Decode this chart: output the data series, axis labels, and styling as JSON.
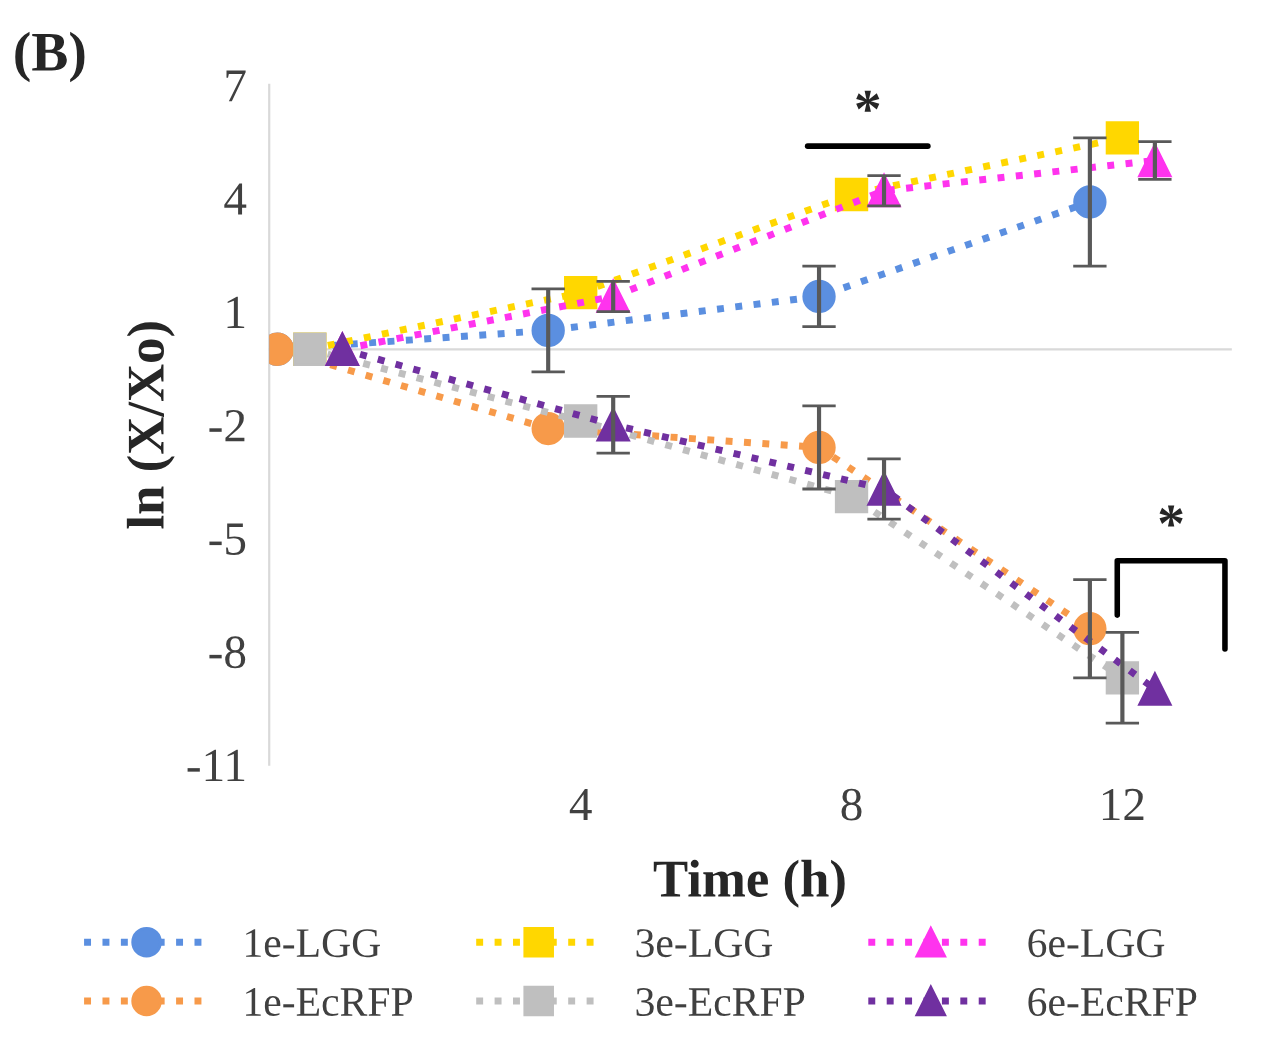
{
  "chart_data": {
    "type": "line",
    "title": "(B)",
    "xlabel": "Time (h)",
    "ylabel": "ln (X/Xo)",
    "categories": [
      null,
      "4",
      "8",
      "12"
    ],
    "ylim": [
      -11,
      7
    ],
    "yticks": [
      7,
      4,
      1,
      -2,
      -5,
      -8,
      -11
    ],
    "grid": false,
    "legend": "bottom",
    "line_style": "dotted",
    "annotations": [
      "*",
      "*"
    ],
    "series": [
      {
        "name": "1e-LGG",
        "color": "#5b8fe0",
        "marker": "circle",
        "values": [
          0,
          0.5,
          1.4,
          3.9
        ],
        "errors": [
          null,
          1.1,
          0.8,
          1.7
        ]
      },
      {
        "name": "1e-EcRFP",
        "color": "#f79a4a",
        "marker": "circle",
        "values": [
          0,
          -2.1,
          -2.6,
          -7.4
        ],
        "errors": [
          null,
          null,
          1.1,
          1.3
        ]
      },
      {
        "name": "3e-LGG",
        "color": "#ffd700",
        "marker": "square",
        "values": [
          0,
          1.5,
          4.1,
          5.6
        ],
        "errors": [
          null,
          null,
          null,
          null
        ]
      },
      {
        "name": "3e-EcRFP",
        "color": "#bfbfbf",
        "marker": "square",
        "values": [
          0,
          -1.9,
          -3.9,
          -8.7
        ],
        "errors": [
          null,
          null,
          null,
          1.2
        ]
      },
      {
        "name": "6e-LGG",
        "color": "#ff33ee",
        "marker": "triangle",
        "values": [
          0,
          1.4,
          4.2,
          5.0
        ],
        "errors": [
          null,
          0.4,
          0.4,
          0.5
        ]
      },
      {
        "name": "6e-EcRFP",
        "color": "#7030a0",
        "marker": "triangle",
        "values": [
          0,
          -2.0,
          -3.7,
          -9.0
        ],
        "errors": [
          null,
          0.75,
          0.8,
          null
        ]
      }
    ]
  }
}
